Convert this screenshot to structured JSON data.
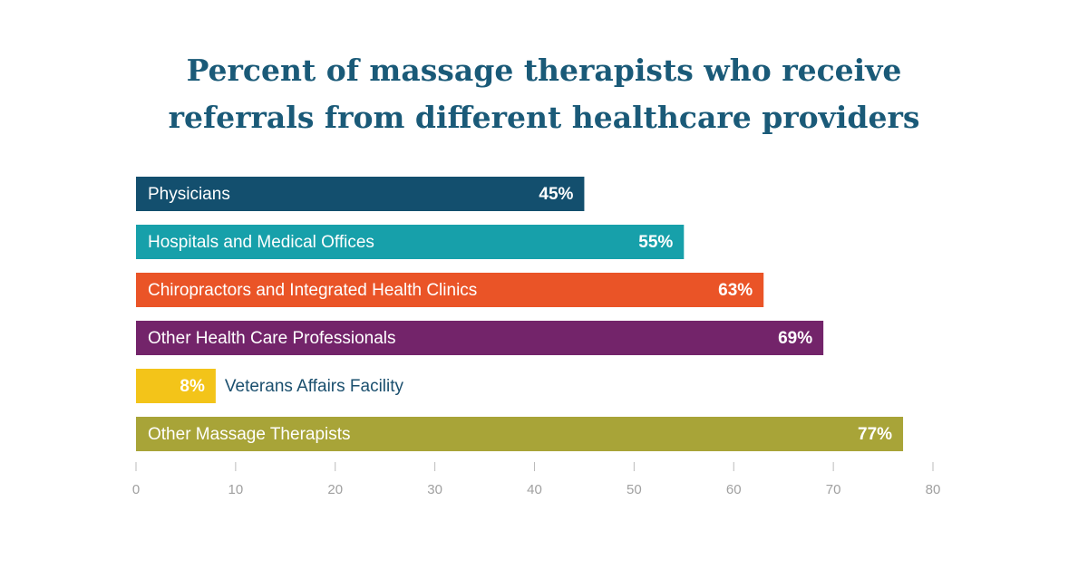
{
  "chart_data": {
    "type": "bar",
    "orientation": "horizontal",
    "title": "Percent of massage therapists who receive referrals from different healthcare providers",
    "categories": [
      "Physicians",
      "Hospitals and Medical Offices",
      "Chiropractors and Integrated Health Clinics",
      "Other Health Care Professionals",
      "Veterans Affairs Facility",
      "Other Massage Therapists"
    ],
    "values": [
      45,
      55,
      63,
      69,
      8,
      77
    ],
    "value_labels": [
      "45%",
      "55%",
      "63%",
      "69%",
      "8%",
      "77%"
    ],
    "colors": [
      "#134f6e",
      "#17a0aa",
      "#ea5427",
      "#73246a",
      "#f3c419",
      "#a8a438"
    ],
    "xlim": [
      0,
      80
    ],
    "xticks": [
      0,
      10,
      20,
      30,
      40,
      50,
      60,
      70,
      80
    ],
    "grid": false
  }
}
